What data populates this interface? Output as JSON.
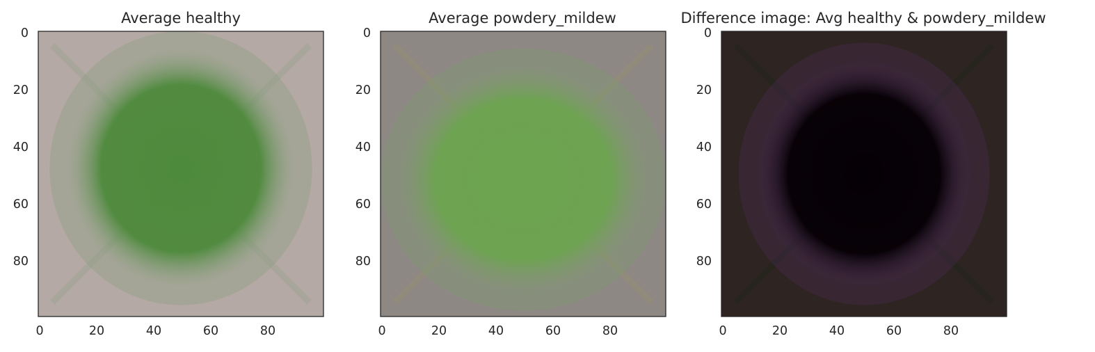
{
  "chart_data": [
    {
      "type": "heatmap",
      "title": "Average healthy",
      "xlim": [
        0,
        100
      ],
      "ylim": [
        100,
        0
      ],
      "xticks": [
        0,
        20,
        40,
        60,
        80
      ],
      "yticks": [
        0,
        20,
        40,
        60,
        80
      ],
      "grid": false,
      "colors": {
        "background": "#b4a9a4",
        "leaf_center": "#4e8a3c",
        "leaf_edge": "#8a9f80",
        "vein": "#9aa08e"
      },
      "leaf": {
        "cx": 50,
        "cy": 48,
        "rx": 40,
        "ry": 42
      },
      "x_tick_labels": [
        "0",
        "20",
        "40",
        "60",
        "80"
      ],
      "y_tick_labels": [
        "0",
        "20",
        "40",
        "60",
        "80"
      ]
    },
    {
      "type": "heatmap",
      "title": "Average powdery_mildew",
      "xlim": [
        0,
        100
      ],
      "ylim": [
        100,
        0
      ],
      "xticks": [
        0,
        20,
        40,
        60,
        80
      ],
      "yticks": [
        0,
        20,
        40,
        60,
        80
      ],
      "grid": false,
      "colors": {
        "background": "#8d8884",
        "leaf_center": "#6ca44f",
        "leaf_edge": "#7f9a6c",
        "vein": "#94906f"
      },
      "leaf": {
        "cx": 50,
        "cy": 52,
        "rx": 44,
        "ry": 40
      },
      "x_tick_labels": [
        "0",
        "20",
        "40",
        "60",
        "80"
      ],
      "y_tick_labels": [
        "0",
        "20",
        "40",
        "60",
        "80"
      ]
    },
    {
      "type": "heatmap",
      "title": "Difference image: Avg healthy & powdery_mildew",
      "xlim": [
        0,
        100
      ],
      "ylim": [
        100,
        0
      ],
      "xticks": [
        0,
        20,
        40,
        60,
        80
      ],
      "yticks": [
        0,
        20,
        40,
        60,
        80
      ],
      "grid": false,
      "colors": {
        "background": "#2e2421",
        "leaf_center": "#050005",
        "leaf_edge": "#4a2b55",
        "vein": "#1c2616"
      },
      "leaf": {
        "cx": 50,
        "cy": 50,
        "rx": 38,
        "ry": 40
      },
      "x_tick_labels": [
        "0",
        "20",
        "40",
        "60",
        "80"
      ],
      "y_tick_labels": [
        "0",
        "20",
        "40",
        "60",
        "80"
      ]
    }
  ]
}
